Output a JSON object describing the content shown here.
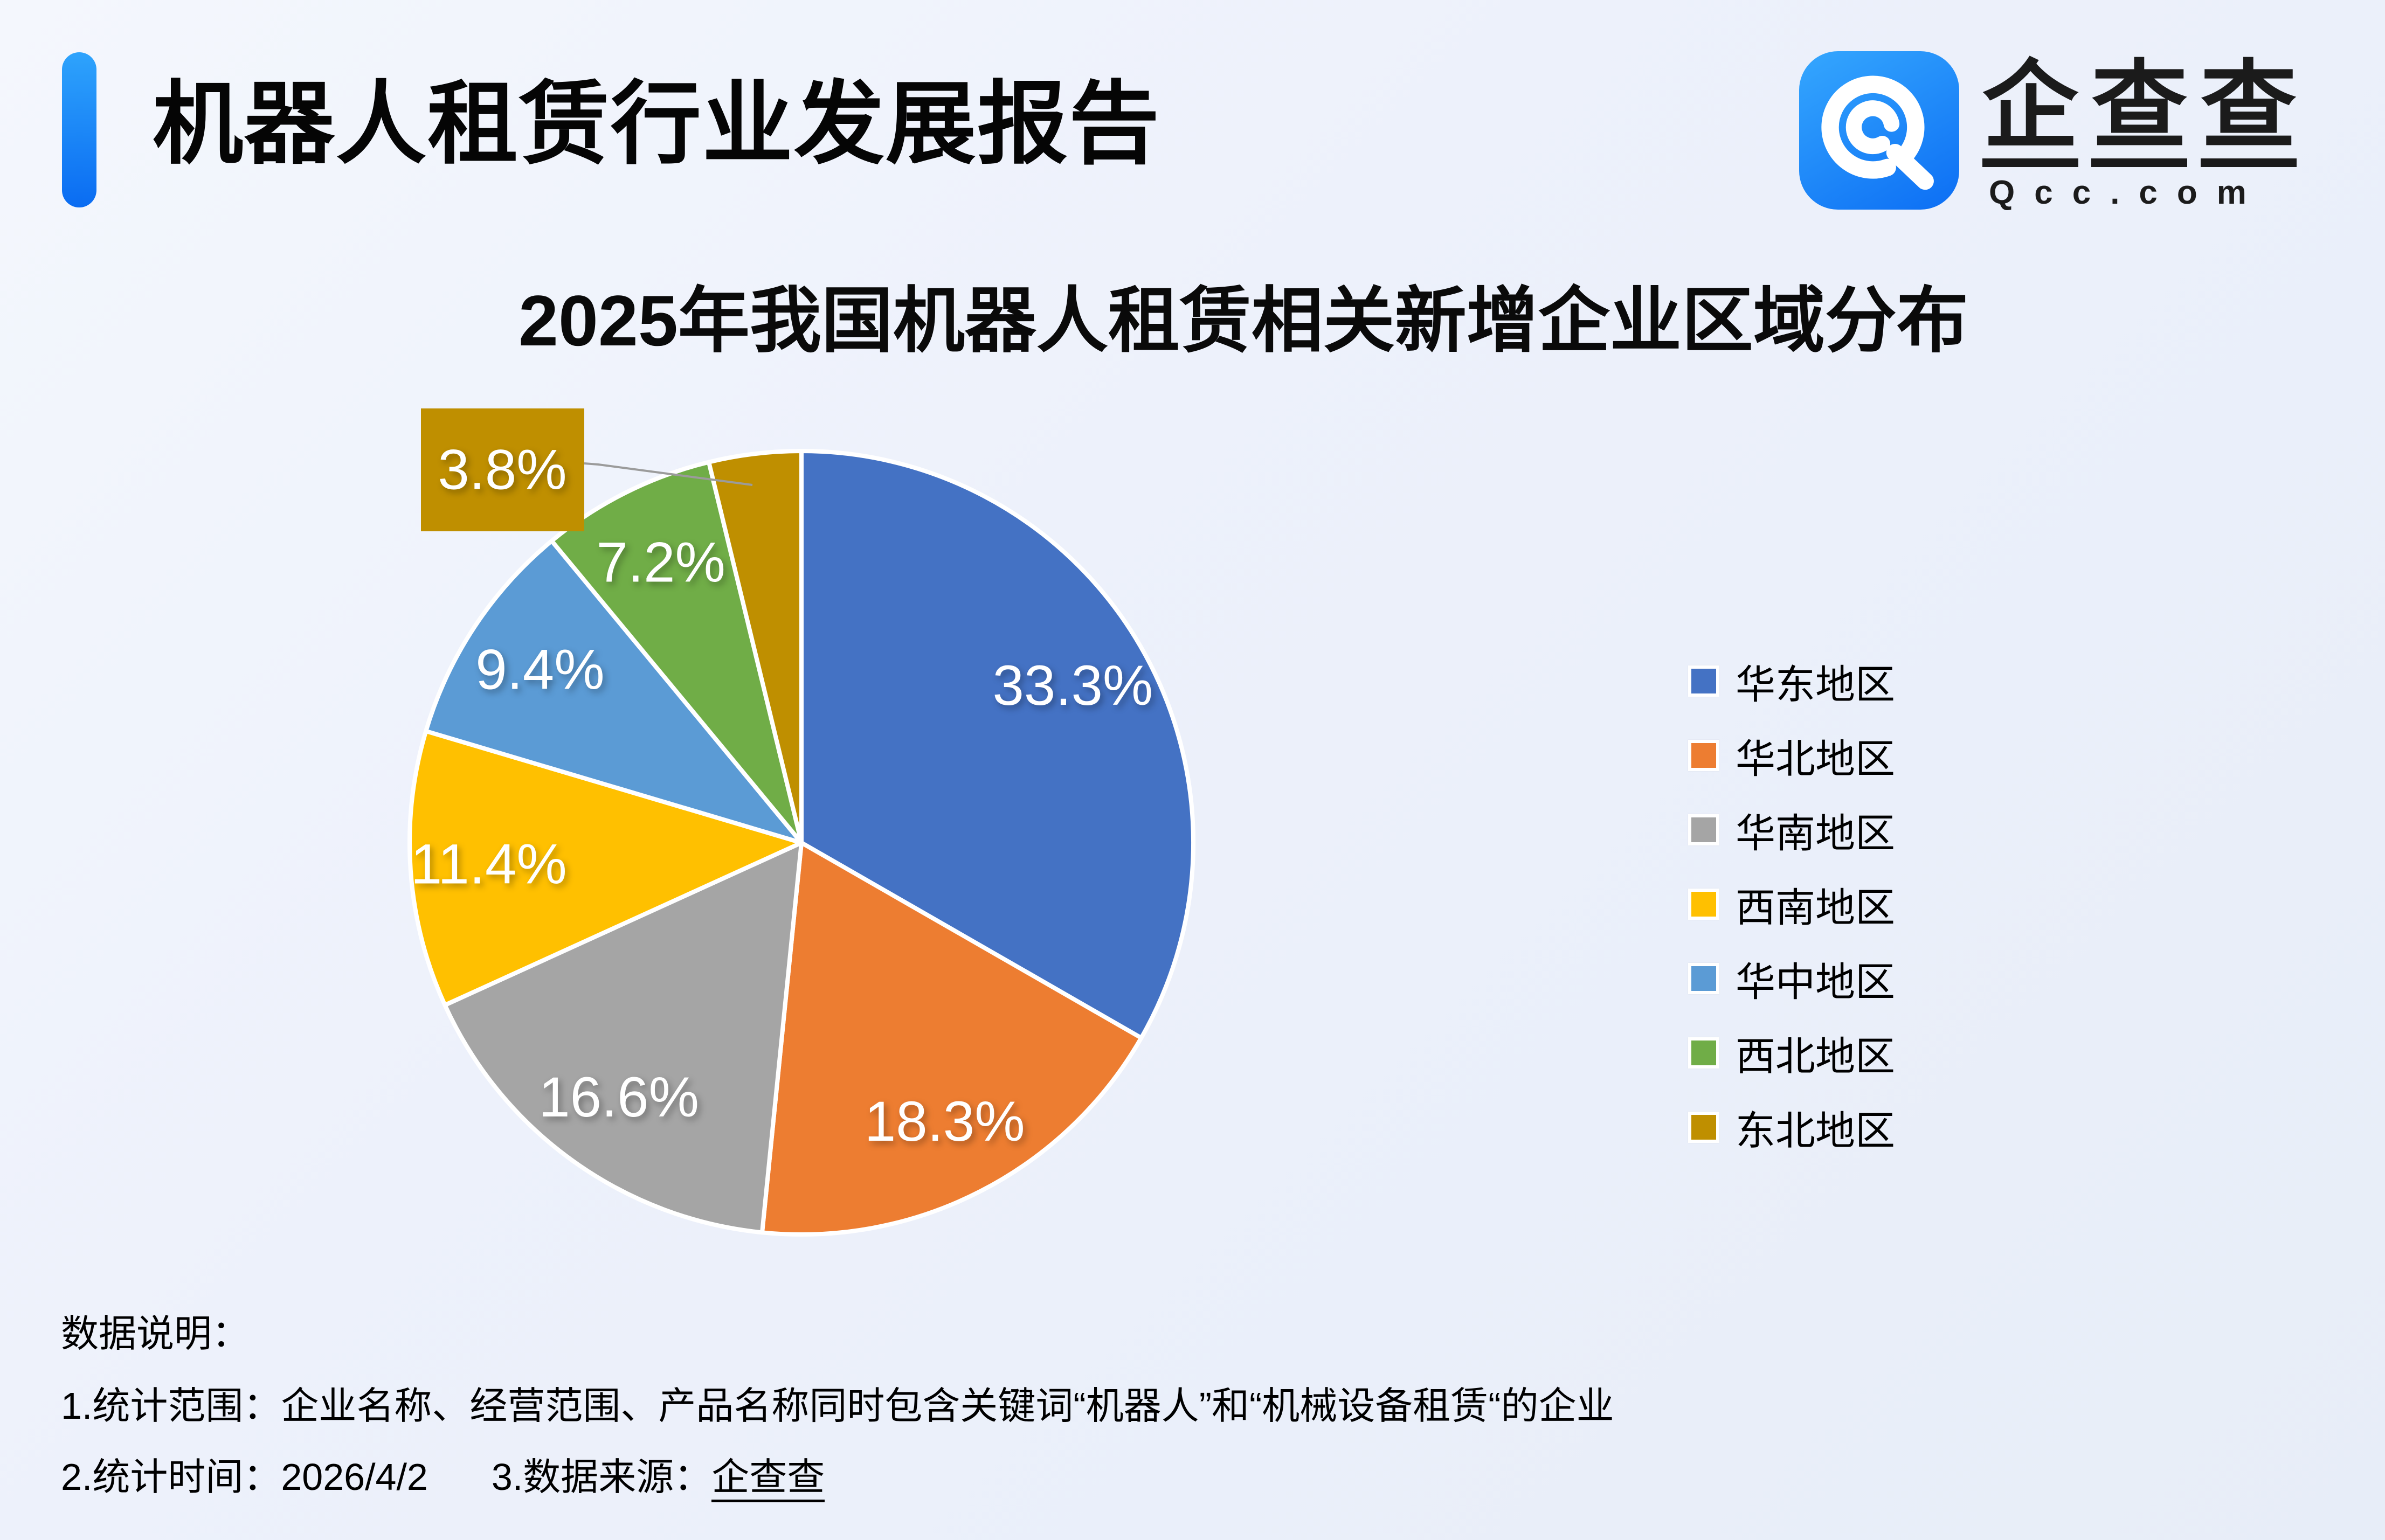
{
  "header": {
    "title": "机器人租赁行业发展报告"
  },
  "logo": {
    "brand_chars": [
      "企",
      "查",
      "查"
    ],
    "domain": "Qcc.com",
    "icon": "qcc-q-spiral-icon",
    "square_color": "#1a8cf8"
  },
  "chart_data": {
    "type": "pie",
    "title": "2025年我国机器人租赁相关新增企业区域分布",
    "unit": "%",
    "total": 100,
    "start_angle_deg": 0,
    "direction": "clockwise",
    "label_position": "inside",
    "legend_position": "right",
    "slices": [
      {
        "label": "华东地区",
        "value": 33.3,
        "display": "33.3%",
        "color": "#4472C4"
      },
      {
        "label": "华北地区",
        "value": 18.3,
        "display": "18.3%",
        "color": "#ED7D31"
      },
      {
        "label": "华南地区",
        "value": 16.6,
        "display": "16.6%",
        "color": "#A5A5A5"
      },
      {
        "label": "西南地区",
        "value": 11.4,
        "display": "11.4%",
        "color": "#FFC000"
      },
      {
        "label": "华中地区",
        "value": 9.4,
        "display": "9.4%",
        "color": "#5B9BD5"
      },
      {
        "label": "西北地区",
        "value": 7.2,
        "display": "7.2%",
        "color": "#70AD47"
      },
      {
        "label": "东北地区",
        "value": 3.8,
        "display": "3.8%",
        "color": "#BF8F00",
        "callout": true
      }
    ]
  },
  "notes": {
    "heading": "数据说明：",
    "line1": "1.统计范围：企业名称、经营范围、产品名称同时包含关键词“机器人”和“机械设备租赁“的企业",
    "line2_prefix": "2.统计时间：2026/4/2",
    "line2_mid": "3.数据来源：",
    "line2_brand": "企查查"
  },
  "theme": {
    "accent_blue": "#0a6cf2",
    "background": "#edf1fb",
    "callout_line": "#9b9b9b",
    "text": "#050505"
  }
}
